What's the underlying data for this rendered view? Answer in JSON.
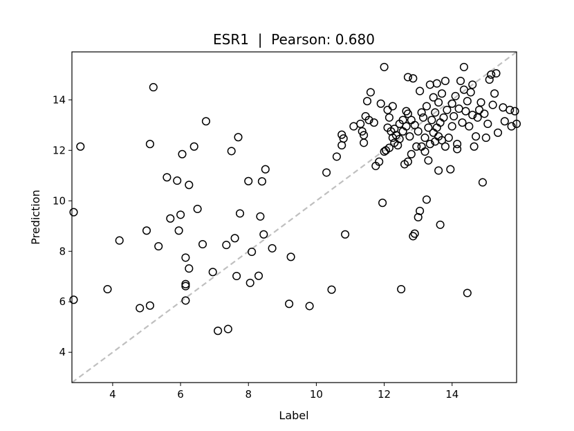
{
  "chart_data": {
    "type": "scatter",
    "title": "ESR1  |  Pearson: 0.680",
    "xlabel": "Label",
    "ylabel": "Prediction",
    "xlim": [
      2.8,
      15.9
    ],
    "ylim": [
      2.8,
      15.9
    ],
    "x_ticks": [
      4,
      6,
      8,
      10,
      12,
      14
    ],
    "y_ticks": [
      4,
      6,
      8,
      10,
      12,
      14
    ],
    "grid": false,
    "marker": "open-circle",
    "marker_color": "#000000",
    "diagonal_line": {
      "style": "dashed",
      "color": "#bfbfbf"
    },
    "points": [
      [
        2.85,
        9.55
      ],
      [
        2.85,
        6.08
      ],
      [
        3.05,
        12.15
      ],
      [
        3.85,
        6.5
      ],
      [
        4.2,
        8.43
      ],
      [
        4.8,
        5.75
      ],
      [
        5.0,
        8.82
      ],
      [
        5.1,
        12.25
      ],
      [
        5.1,
        5.85
      ],
      [
        5.2,
        14.5
      ],
      [
        5.35,
        8.2
      ],
      [
        5.6,
        10.93
      ],
      [
        5.7,
        9.3
      ],
      [
        5.9,
        10.8
      ],
      [
        5.95,
        8.82
      ],
      [
        6.0,
        9.45
      ],
      [
        6.05,
        11.85
      ],
      [
        6.15,
        7.75
      ],
      [
        6.15,
        6.05
      ],
      [
        6.15,
        6.7
      ],
      [
        6.15,
        6.62
      ],
      [
        6.25,
        7.32
      ],
      [
        6.25,
        10.63
      ],
      [
        6.4,
        12.15
      ],
      [
        6.5,
        9.68
      ],
      [
        6.65,
        8.28
      ],
      [
        6.75,
        13.15
      ],
      [
        6.95,
        7.18
      ],
      [
        7.1,
        4.85
      ],
      [
        7.35,
        8.25
      ],
      [
        7.4,
        4.92
      ],
      [
        7.5,
        11.97
      ],
      [
        7.6,
        8.52
      ],
      [
        7.65,
        7.02
      ],
      [
        7.7,
        12.52
      ],
      [
        7.75,
        9.5
      ],
      [
        8.0,
        10.78
      ],
      [
        8.05,
        6.75
      ],
      [
        8.1,
        7.98
      ],
      [
        8.3,
        7.03
      ],
      [
        8.35,
        9.38
      ],
      [
        8.4,
        10.77
      ],
      [
        8.45,
        8.67
      ],
      [
        8.5,
        11.25
      ],
      [
        8.7,
        8.12
      ],
      [
        9.2,
        5.92
      ],
      [
        9.25,
        7.78
      ],
      [
        9.8,
        5.83
      ],
      [
        10.3,
        11.12
      ],
      [
        10.45,
        6.48
      ],
      [
        10.6,
        11.75
      ],
      [
        10.75,
        12.62
      ],
      [
        10.75,
        12.2
      ],
      [
        10.8,
        12.47
      ],
      [
        10.85,
        8.67
      ],
      [
        11.1,
        12.95
      ],
      [
        11.3,
        13.05
      ],
      [
        11.35,
        12.75
      ],
      [
        11.4,
        12.6
      ],
      [
        11.4,
        12.3
      ],
      [
        11.45,
        13.35
      ],
      [
        11.5,
        13.95
      ],
      [
        11.55,
        13.2
      ],
      [
        11.6,
        14.3
      ],
      [
        11.7,
        13.1
      ],
      [
        11.75,
        11.38
      ],
      [
        11.85,
        11.55
      ],
      [
        11.9,
        13.85
      ],
      [
        11.95,
        9.92
      ],
      [
        12.0,
        15.3
      ],
      [
        12.0,
        11.95
      ],
      [
        12.05,
        12.0
      ],
      [
        12.1,
        13.6
      ],
      [
        12.1,
        12.9
      ],
      [
        12.15,
        12.1
      ],
      [
        12.15,
        13.3
      ],
      [
        12.2,
        12.75
      ],
      [
        12.25,
        13.75
      ],
      [
        12.25,
        12.5
      ],
      [
        12.3,
        12.85
      ],
      [
        12.3,
        12.3
      ],
      [
        12.35,
        12.6
      ],
      [
        12.4,
        12.2
      ],
      [
        12.45,
        12.45
      ],
      [
        12.45,
        13.05
      ],
      [
        12.5,
        6.5
      ],
      [
        12.55,
        12.75
      ],
      [
        12.55,
        13.2
      ],
      [
        12.6,
        11.45
      ],
      [
        12.65,
        12.95
      ],
      [
        12.65,
        13.55
      ],
      [
        12.7,
        13.45
      ],
      [
        12.7,
        11.55
      ],
      [
        12.7,
        14.9
      ],
      [
        12.75,
        12.55
      ],
      [
        12.8,
        11.85
      ],
      [
        12.8,
        13.2
      ],
      [
        12.85,
        8.6
      ],
      [
        12.85,
        14.85
      ],
      [
        12.9,
        8.7
      ],
      [
        12.9,
        13.0
      ],
      [
        12.95,
        12.15
      ],
      [
        13.0,
        9.35
      ],
      [
        13.0,
        12.75
      ],
      [
        13.05,
        14.35
      ],
      [
        13.05,
        9.6
      ],
      [
        13.1,
        13.5
      ],
      [
        13.1,
        12.15
      ],
      [
        13.15,
        13.3
      ],
      [
        13.2,
        11.95
      ],
      [
        13.2,
        12.5
      ],
      [
        13.25,
        10.05
      ],
      [
        13.25,
        13.75
      ],
      [
        13.3,
        12.9
      ],
      [
        13.3,
        11.6
      ],
      [
        13.35,
        14.6
      ],
      [
        13.35,
        12.25
      ],
      [
        13.4,
        13.2
      ],
      [
        13.45,
        12.7
      ],
      [
        13.45,
        14.1
      ],
      [
        13.5,
        12.35
      ],
      [
        13.5,
        13.5
      ],
      [
        13.55,
        14.65
      ],
      [
        13.55,
        12.9
      ],
      [
        13.6,
        11.2
      ],
      [
        13.6,
        13.9
      ],
      [
        13.6,
        12.55
      ],
      [
        13.65,
        9.05
      ],
      [
        13.65,
        13.1
      ],
      [
        13.7,
        12.4
      ],
      [
        13.7,
        14.25
      ],
      [
        13.75,
        13.3
      ],
      [
        13.8,
        14.75
      ],
      [
        13.8,
        12.15
      ],
      [
        13.85,
        13.6
      ],
      [
        13.9,
        12.5
      ],
      [
        13.95,
        11.25
      ],
      [
        14.0,
        13.85
      ],
      [
        14.0,
        12.95
      ],
      [
        14.05,
        13.35
      ],
      [
        14.1,
        14.15
      ],
      [
        14.15,
        12.25
      ],
      [
        14.15,
        12.05
      ],
      [
        14.2,
        13.65
      ],
      [
        14.25,
        14.75
      ],
      [
        14.3,
        13.1
      ],
      [
        14.35,
        15.3
      ],
      [
        14.35,
        14.4
      ],
      [
        14.4,
        13.55
      ],
      [
        14.45,
        6.35
      ],
      [
        14.45,
        13.95
      ],
      [
        14.5,
        12.95
      ],
      [
        14.55,
        14.3
      ],
      [
        14.6,
        14.6
      ],
      [
        14.6,
        13.4
      ],
      [
        14.65,
        12.15
      ],
      [
        14.7,
        12.55
      ],
      [
        14.75,
        13.3
      ],
      [
        14.8,
        13.6
      ],
      [
        14.85,
        13.9
      ],
      [
        14.9,
        10.73
      ],
      [
        14.95,
        13.45
      ],
      [
        15.0,
        12.5
      ],
      [
        15.05,
        13.05
      ],
      [
        15.1,
        14.8
      ],
      [
        15.15,
        15.0
      ],
      [
        15.2,
        13.8
      ],
      [
        15.25,
        14.25
      ],
      [
        15.3,
        15.05
      ],
      [
        15.35,
        12.7
      ],
      [
        15.5,
        13.7
      ],
      [
        15.55,
        13.15
      ],
      [
        15.7,
        13.6
      ],
      [
        15.75,
        12.95
      ],
      [
        15.85,
        13.55
      ],
      [
        15.9,
        13.05
      ]
    ]
  }
}
